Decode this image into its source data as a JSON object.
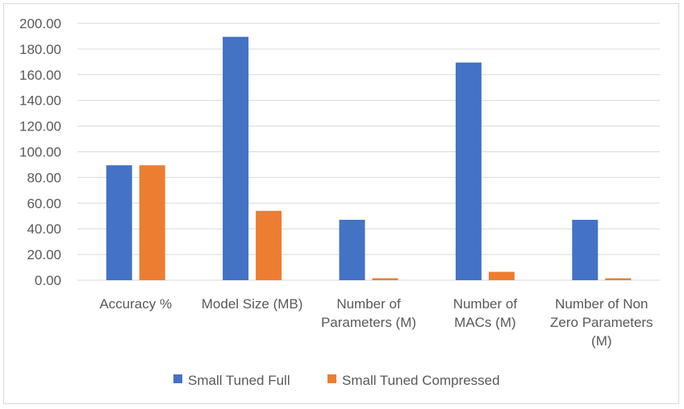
{
  "chart_data": {
    "type": "bar",
    "title": "",
    "xlabel": "",
    "ylabel": "",
    "ylim": [
      0,
      200
    ],
    "ytick_step": 20,
    "ytick_labels": [
      "0.00",
      "20.00",
      "40.00",
      "60.00",
      "80.00",
      "100.00",
      "120.00",
      "140.00",
      "160.00",
      "180.00",
      "200.00"
    ],
    "grid": true,
    "legend_position": "bottom",
    "categories": [
      [
        "Accuracy %"
      ],
      [
        "Model Size (MB)"
      ],
      [
        "Number of",
        "Parameters (M)"
      ],
      [
        "Number of",
        "MACs (M)"
      ],
      [
        "Number of Non",
        "Zero Parameters",
        "(M)"
      ]
    ],
    "series": [
      {
        "name": "Small Tuned Full",
        "color": "#4472C4",
        "values": [
          89.5,
          189.5,
          47,
          169.5,
          47
        ]
      },
      {
        "name": "Small Tuned Compressed",
        "color": "#ED7D31",
        "values": [
          89.5,
          54,
          1.5,
          6.5,
          1.5
        ]
      }
    ]
  }
}
